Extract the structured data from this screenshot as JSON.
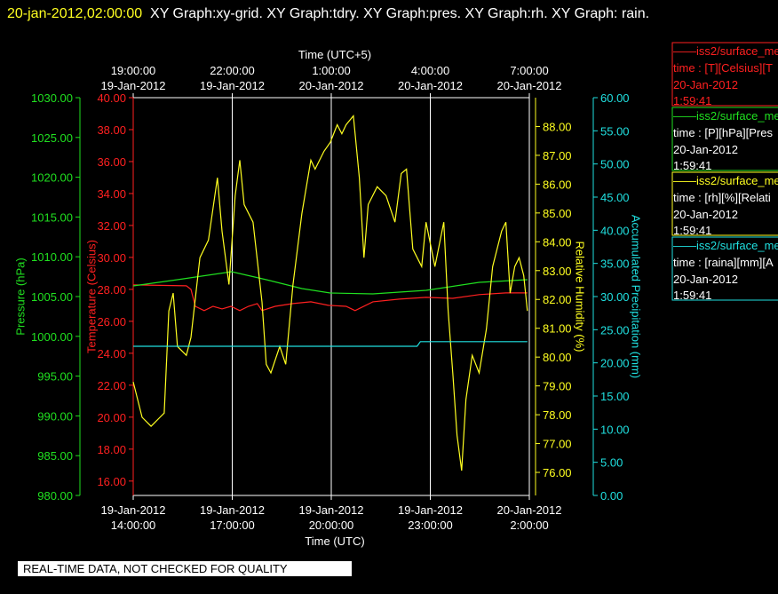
{
  "chart_data": {
    "type": "line",
    "title": "20-jan-2012,02:00:00",
    "subtitle": "XY Graph:xy-grid.  XY Graph:tdry.  XY Graph:pres.  XY Graph:rh.  XY Graph: rain.",
    "xlabel": "Time (UTC)",
    "x2label": "Time (UTC+5)",
    "xlim": [
      0,
      12
    ],
    "xticks": [
      {
        "value": 0,
        "label": "19-Jan-2012\n14:00:00"
      },
      {
        "value": 3,
        "label": "19-Jan-2012\n17:00:00"
      },
      {
        "value": 6,
        "label": "19-Jan-2012\n20:00:00"
      },
      {
        "value": 9,
        "label": "19-Jan-2012\n23:00:00"
      },
      {
        "value": 12,
        "label": "20-Jan-2012\n2:00:00"
      }
    ],
    "x2ticks": [
      {
        "value": 0,
        "label": "19:00:00\n19-Jan-2012"
      },
      {
        "value": 3,
        "label": "22:00:00\n19-Jan-2012"
      },
      {
        "value": 6,
        "label": "1:00:00\n20-Jan-2012"
      },
      {
        "value": 9,
        "label": "4:00:00\n20-Jan-2012"
      },
      {
        "value": 12,
        "label": "7:00:00\n20-Jan-2012"
      }
    ],
    "grid": true,
    "y_axes": [
      {
        "label": "Temperature (Celsius)",
        "color": "#ff2020",
        "lim": [
          15.1,
          40
        ],
        "ticks": [
          {
            "value": 16,
            "label": "16.00"
          },
          {
            "value": 18,
            "label": "18.00"
          },
          {
            "value": 20,
            "label": "20.00"
          },
          {
            "value": 22,
            "label": "22.00"
          },
          {
            "value": 24,
            "label": "24.00"
          },
          {
            "value": 26,
            "label": "26.00"
          },
          {
            "value": 28,
            "label": "28.00"
          },
          {
            "value": 30,
            "label": "30.00"
          },
          {
            "value": 32,
            "label": "32.00"
          },
          {
            "value": 34,
            "label": "34.00"
          },
          {
            "value": 36,
            "label": "36.00"
          },
          {
            "value": 38,
            "label": "38.00"
          },
          {
            "value": 40,
            "label": "40.00"
          }
        ]
      },
      {
        "label": "Pressure (hPa)",
        "color": "#20e020",
        "lim": [
          980,
          1030
        ],
        "ticks": [
          {
            "value": 980,
            "label": "980.00"
          },
          {
            "value": 985,
            "label": "985.00"
          },
          {
            "value": 990,
            "label": "990.00"
          },
          {
            "value": 995,
            "label": "995.00"
          },
          {
            "value": 1000,
            "label": "1000.00"
          },
          {
            "value": 1005,
            "label": "1005.00"
          },
          {
            "value": 1010,
            "label": "1010.00"
          },
          {
            "value": 1015,
            "label": "1015.00"
          },
          {
            "value": 1020,
            "label": "1020.00"
          },
          {
            "value": 1025,
            "label": "1025.00"
          },
          {
            "value": 1030,
            "label": "1030.00"
          }
        ]
      },
      {
        "label": "Relative Humidity (%)",
        "color": "#ffff20",
        "lim": [
          75.2,
          89
        ],
        "ticks": [
          {
            "value": 76,
            "label": "76.00"
          },
          {
            "value": 77,
            "label": "77.00"
          },
          {
            "value": 78,
            "label": "78.00"
          },
          {
            "value": 79,
            "label": "79.00"
          },
          {
            "value": 80,
            "label": "80.00"
          },
          {
            "value": 81,
            "label": "81.00"
          },
          {
            "value": 82,
            "label": "82.00"
          },
          {
            "value": 83,
            "label": "83.00"
          },
          {
            "value": 84,
            "label": "84.00"
          },
          {
            "value": 85,
            "label": "85.00"
          },
          {
            "value": 86,
            "label": "86.00"
          },
          {
            "value": 87,
            "label": "87.00"
          },
          {
            "value": 88,
            "label": "88.00"
          }
        ]
      },
      {
        "label": "Accumulated Precipitation (mm)",
        "color": "#20e0e0",
        "lim": [
          0,
          60
        ],
        "ticks": [
          {
            "value": 0,
            "label": "0.00"
          },
          {
            "value": 5,
            "label": "5.00"
          },
          {
            "value": 10,
            "label": "10.00"
          },
          {
            "value": 15,
            "label": "15.00"
          },
          {
            "value": 20,
            "label": "20.00"
          },
          {
            "value": 25,
            "label": "25.00"
          },
          {
            "value": 30,
            "label": "30.00"
          },
          {
            "value": 35,
            "label": "35.00"
          },
          {
            "value": 40,
            "label": "40.00"
          },
          {
            "value": 45,
            "label": "45.00"
          },
          {
            "value": 50,
            "label": "50.00"
          },
          {
            "value": 55,
            "label": "55.00"
          },
          {
            "value": 60,
            "label": "60.00"
          }
        ]
      }
    ],
    "series": [
      {
        "name": "——iss2/surface_me",
        "detail": "time : [T][Celsius][T",
        "date": "20-Jan-2012",
        "time": "1:59:41",
        "color": "#ff2020",
        "x": [
          0,
          1.61,
          1.75,
          1.88,
          2.15,
          2.42,
          2.69,
          2.96,
          3.23,
          3.49,
          3.76,
          3.9,
          4.3,
          4.84,
          5.38,
          5.91,
          6.45,
          6.72,
          7.26,
          8.06,
          8.87,
          9.68,
          10.48,
          11.29,
          11.94
        ],
        "values": [
          28.28,
          28.22,
          28.0,
          26.94,
          26.67,
          26.94,
          26.78,
          26.94,
          26.67,
          26.94,
          27.11,
          26.67,
          26.94,
          27.11,
          27.22,
          27.0,
          26.94,
          26.67,
          27.22,
          27.39,
          27.5,
          27.44,
          27.67,
          27.78,
          27.78
        ]
      },
      {
        "name": "——iss2/surface_me",
        "detail": "time : [P][hPa][Pres",
        "date": "20-Jan-2012",
        "time": "1:59:41",
        "color": "#20e020",
        "x": [
          0,
          1.34,
          2.98,
          4.03,
          5.11,
          5.97,
          7.26,
          8.87,
          10.48,
          11.94
        ],
        "values": [
          1006.34,
          1007.12,
          1008.13,
          1007.12,
          1006.0,
          1005.45,
          1005.33,
          1005.78,
          1006.79,
          1007.12
        ]
      },
      {
        "name": "——iss2/surface_me",
        "detail": "time : [rh][%][Relati",
        "date": "20-Jan-2012",
        "time": "1:59:41",
        "color": "#ffff20",
        "x": [
          0,
          0.27,
          0.54,
          0.81,
          0.94,
          1.08,
          1.21,
          1.34,
          1.61,
          1.75,
          2.02,
          2.28,
          2.55,
          2.69,
          2.9,
          3.09,
          3.23,
          3.36,
          3.63,
          3.9,
          4.03,
          4.17,
          4.44,
          4.62,
          4.84,
          5.11,
          5.38,
          5.51,
          5.78,
          5.97,
          6.18,
          6.32,
          6.45,
          6.67,
          6.85,
          6.99,
          7.12,
          7.39,
          7.66,
          7.93,
          8.12,
          8.28,
          8.47,
          8.74,
          8.87,
          9.14,
          9.41,
          9.54,
          9.68,
          9.81,
          9.95,
          10.08,
          10.27,
          10.48,
          10.7,
          10.89,
          11.16,
          11.29,
          11.42,
          11.56,
          11.69,
          11.83,
          11.94
        ],
        "values": [
          79.14,
          77.91,
          77.6,
          77.91,
          78.06,
          81.6,
          82.22,
          80.37,
          80.06,
          80.68,
          83.45,
          84.06,
          86.22,
          84.37,
          82.52,
          85.6,
          86.83,
          85.29,
          84.68,
          81.91,
          79.75,
          79.45,
          80.37,
          79.75,
          82.52,
          84.98,
          86.83,
          86.52,
          87.14,
          87.45,
          88.06,
          87.75,
          88.06,
          88.37,
          86.22,
          83.45,
          85.29,
          85.91,
          85.6,
          84.68,
          86.37,
          86.52,
          83.75,
          83.14,
          84.68,
          83.14,
          84.68,
          81.6,
          79.45,
          77.29,
          76.06,
          78.52,
          80.06,
          79.45,
          80.98,
          83.14,
          84.37,
          84.68,
          82.22,
          83.14,
          83.45,
          82.83,
          81.6
        ]
      },
      {
        "name": "——iss2/surface_me",
        "detail": "time : [raina][mm][A",
        "date": "20-Jan-2012",
        "time": "1:59:41",
        "color": "#20e0e0",
        "x": [
          0,
          8.6,
          8.7,
          11.94
        ],
        "values": [
          22.5,
          22.5,
          23.2,
          23.2
        ]
      }
    ],
    "note": "REAL-TIME DATA, NOT CHECKED FOR QUALITY"
  }
}
